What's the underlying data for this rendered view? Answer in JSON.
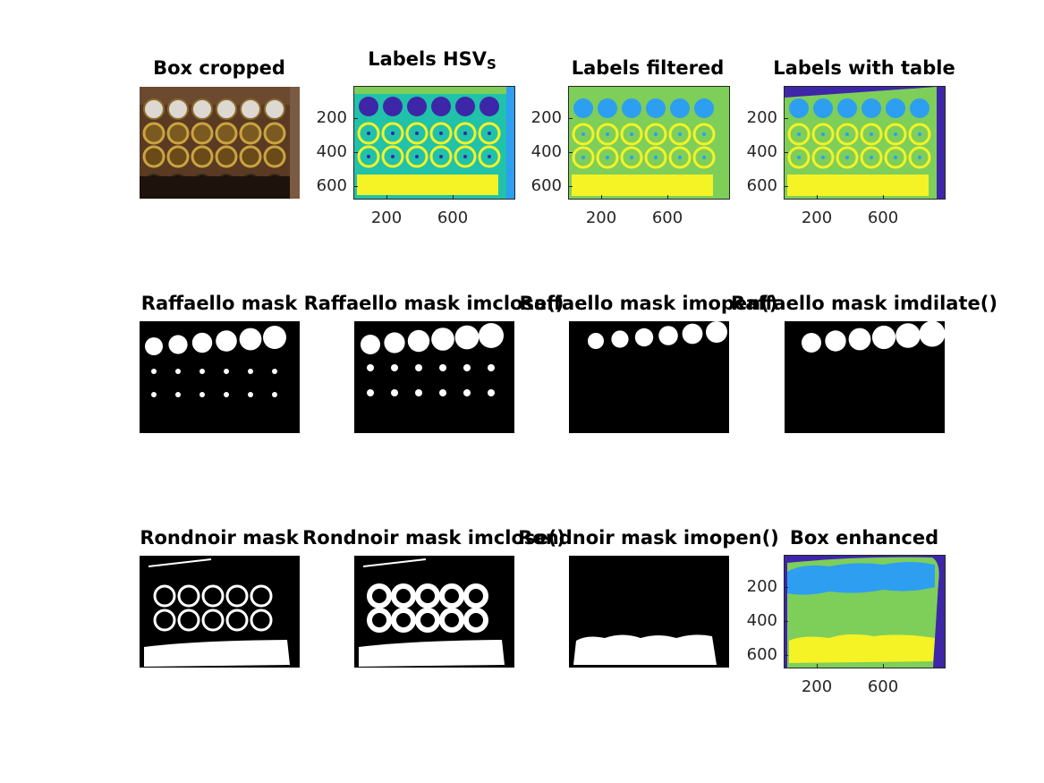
{
  "figure": {
    "panels": [
      {
        "id": "box-cropped",
        "title": "Box cropped"
      },
      {
        "id": "labels-hsv",
        "title": "Labels HSV",
        "title_sub": "S"
      },
      {
        "id": "labels-filtered",
        "title": "Labels filtered"
      },
      {
        "id": "labels-with-table",
        "title": "Labels with table"
      },
      {
        "id": "raffaello-mask",
        "title": "Raffaello mask"
      },
      {
        "id": "raffaello-mask-imclose",
        "title": "Raffaello mask imclose()"
      },
      {
        "id": "raffaello-mask-imopen",
        "title": "Raffaello mask imopen()"
      },
      {
        "id": "raffaello-mask-imdilate",
        "title": "Raffaello mask imdilate()"
      },
      {
        "id": "rondnoir-mask",
        "title": "Rondnoir mask"
      },
      {
        "id": "rondnoir-mask-imclose",
        "title": "Rondnoir mask imclose()"
      },
      {
        "id": "rondnoir-mask-imopen",
        "title": "Rondnoir mask imopen()"
      },
      {
        "id": "box-enhanced",
        "title": "Box enhanced"
      }
    ],
    "yticks": [
      "200",
      "400",
      "600"
    ],
    "xticks": [
      "200",
      "600"
    ]
  },
  "colors": {
    "label_purple": "#3e26a8",
    "label_blue": "#2e9ef0",
    "label_teal": "#20c2aa",
    "label_green": "#7ece5a",
    "label_yellow": "#f5f226",
    "mask_white": "#ffffff",
    "mask_black": "#000000",
    "box_gold": "#8a6a2a",
    "box_dark": "#2a1a10"
  }
}
